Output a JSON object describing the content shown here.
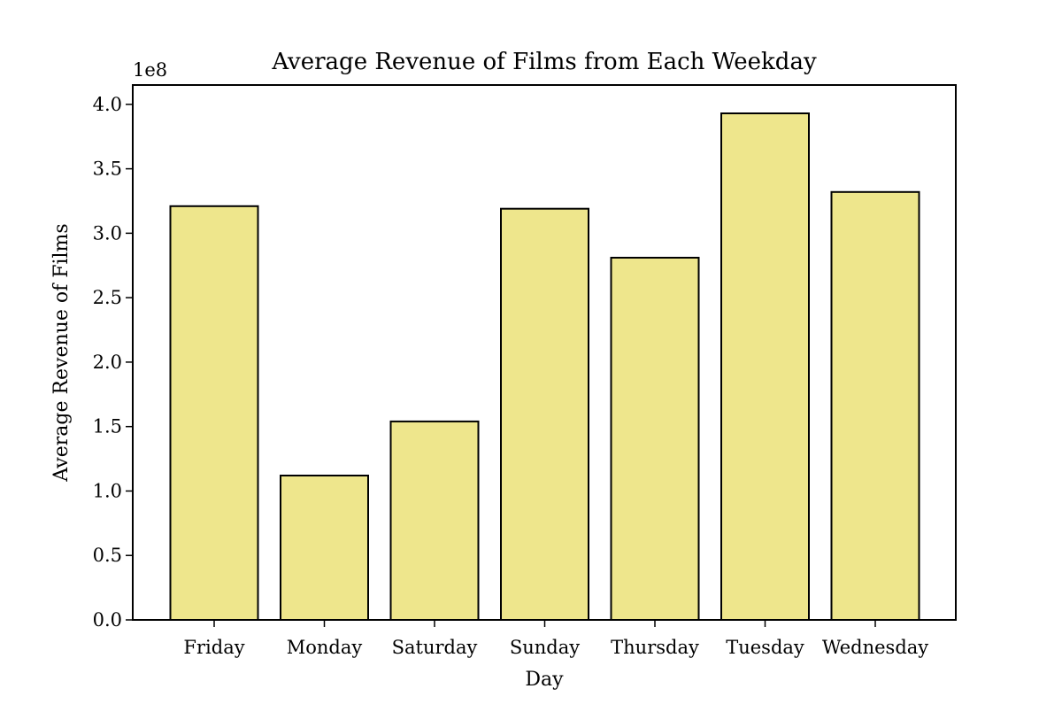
{
  "chart_data": {
    "type": "bar",
    "title": "Average Revenue of Films from Each Weekday",
    "xlabel": "Day",
    "ylabel": "Average Revenue of Films",
    "y_offset_label": "1e8",
    "categories": [
      "Friday",
      "Monday",
      "Saturday",
      "Sunday",
      "Thursday",
      "Tuesday",
      "Wednesday"
    ],
    "values": [
      321000000,
      112000000,
      154000000,
      319000000,
      281000000,
      393000000,
      332000000
    ],
    "ylim": [
      0,
      415000000
    ],
    "yticks": [
      0,
      50000000,
      100000000,
      150000000,
      200000000,
      250000000,
      300000000,
      350000000,
      400000000
    ],
    "ytick_labels": [
      "0.0",
      "0.5",
      "1.0",
      "1.5",
      "2.0",
      "2.5",
      "3.0",
      "3.5",
      "4.0"
    ],
    "grid": false,
    "legend": "none",
    "colors": {
      "bar_fill": "#EEE68C",
      "bar_edge": "#000000",
      "axes": "#000000",
      "background": "#FFFFFF"
    }
  }
}
